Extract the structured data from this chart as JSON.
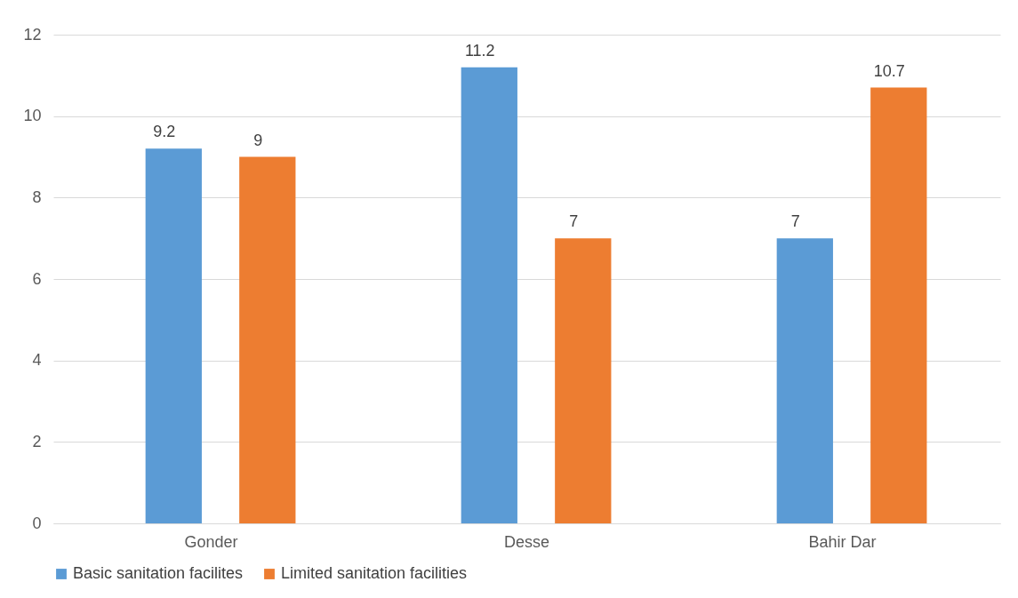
{
  "chart_data": {
    "type": "bar",
    "categories": [
      "Gonder",
      "Desse",
      "Bahir Dar"
    ],
    "series": [
      {
        "name": "Basic sanitation facilites",
        "color": "#5b9bd5",
        "values": [
          9.2,
          11.2,
          7
        ]
      },
      {
        "name": "Limited sanitation facilities",
        "color": "#ed7d31",
        "values": [
          9,
          7,
          10.7
        ]
      }
    ],
    "ylim": [
      0,
      12
    ],
    "yticks": [
      0,
      2,
      4,
      6,
      8,
      10,
      12
    ],
    "grid": "y",
    "legend": "bottom",
    "data_labels": true
  }
}
